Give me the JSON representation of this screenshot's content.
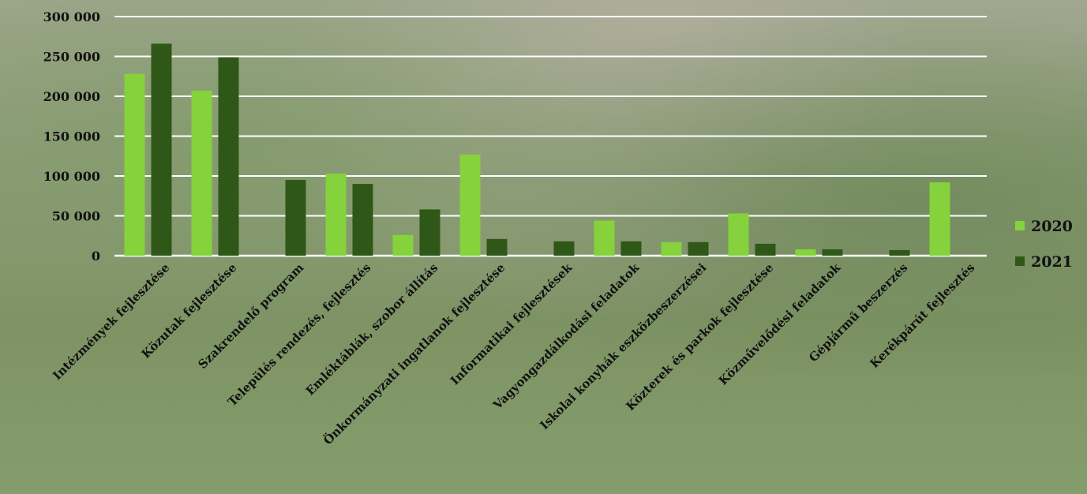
{
  "chart_data": {
    "type": "bar",
    "title": "",
    "xlabel": "",
    "ylabel": "",
    "ylim": [
      0,
      300000
    ],
    "yticks": [
      {
        "value": 0,
        "label": "0"
      },
      {
        "value": 50000,
        "label": "50 000"
      },
      {
        "value": 100000,
        "label": "100 000"
      },
      {
        "value": 150000,
        "label": "150 000"
      },
      {
        "value": 200000,
        "label": "200 000"
      },
      {
        "value": 250000,
        "label": "250 000"
      },
      {
        "value": 300000,
        "label": "300 000"
      }
    ],
    "grid": true,
    "legend_position": "right",
    "categories": [
      "Intézmények fejlesztése",
      "Közutak fejlesztése",
      "Szakrendelő program",
      "Település rendezés, fejlesztés",
      "Emléktáblák, szobor állítás",
      "Önkormányzati ingatlanok fejlesztése",
      "Informatikai fejlesztések",
      "Vagyongazdálkodási feladatok",
      "Iskolai konyhák eszközbeszerzései",
      "Közterek és parkok fejlesztése",
      "Közművelődési feladatok",
      "Gépjármű beszerzés",
      "Kerékpárút fejlesztés"
    ],
    "series": [
      {
        "name": "2020",
        "color": "#86d23c",
        "values": [
          228000,
          207000,
          0,
          103000,
          26000,
          127000,
          0,
          44000,
          17000,
          53000,
          8000,
          0,
          92000
        ]
      },
      {
        "name": "2021",
        "color": "#2f5718",
        "values": [
          266000,
          249000,
          95000,
          90000,
          58000,
          21000,
          18000,
          18000,
          17000,
          15000,
          8000,
          7000,
          0
        ]
      }
    ]
  }
}
